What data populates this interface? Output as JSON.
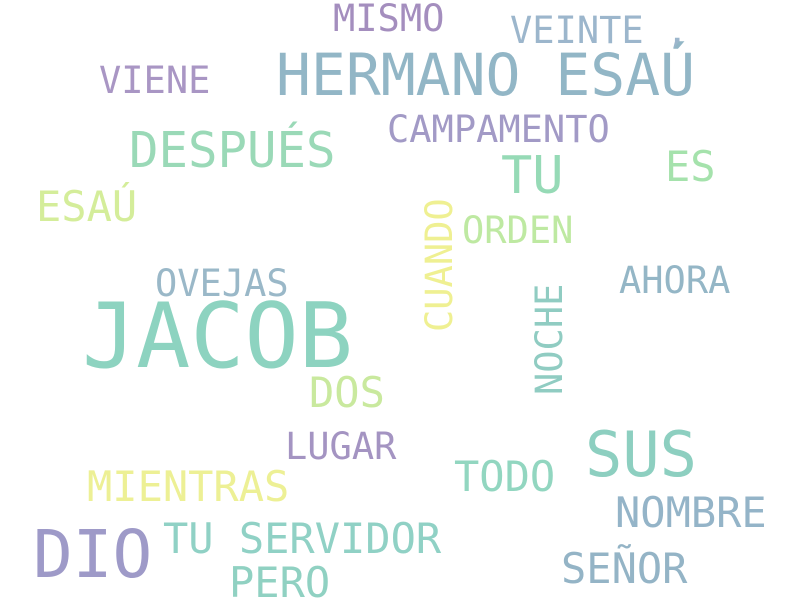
{
  "words": {
    "jacob": {
      "text": "JACOB",
      "color": "#8dd3c0"
    },
    "dio": {
      "text": "DIO",
      "color": "#9e9ac8"
    },
    "hermano_esau": {
      "text": "HERMANO ESAÚ",
      "color": "#92b6c6"
    },
    "sus": {
      "text": "SUS",
      "color": "#8dcfc0"
    },
    "despues": {
      "text": "DESPUÉS",
      "color": "#9ad9b7"
    },
    "tu": {
      "text": "TU",
      "color": "#96dab6"
    },
    "tu_servidor": {
      "text": "TU SERVIDOR",
      "color": "#90d1c5"
    },
    "mientras": {
      "text": "MIENTRAS",
      "color": "#edf095"
    },
    "nombre": {
      "text": "NOMBRE",
      "color": "#94b4c8"
    },
    "senor": {
      "text": "SEÑOR",
      "color": "#94b4c6"
    },
    "pero": {
      "text": "PERO",
      "color": "#90d1c2"
    },
    "esau": {
      "text": "ESAÚ",
      "color": "#d4ed9a"
    },
    "dos": {
      "text": "DOS",
      "color": "#c9e99e"
    },
    "es": {
      "text": "ES",
      "color": "#a5e2ac"
    },
    "todo": {
      "text": "TODO",
      "color": "#92d6c0"
    },
    "campamento": {
      "text": "CAMPAMENTO",
      "color": "#a29ac6"
    },
    "lugar": {
      "text": "LUGAR",
      "color": "#a494c2"
    },
    "veinte": {
      "text": "VEINTE ,",
      "color": "#9cb6cc"
    },
    "viene": {
      "text": "VIENE",
      "color": "#a996c4"
    },
    "mismo": {
      "text": "MISMO",
      "color": "#a48ebe"
    },
    "ovejas": {
      "text": "OVEJAS",
      "color": "#9ab8c8"
    },
    "orden": {
      "text": "ORDEN",
      "color": "#bee9a2"
    },
    "ahora": {
      "text": "AHORA",
      "color": "#94b6c6"
    },
    "cuando": {
      "text": "CUANDO",
      "color": "#eff092"
    },
    "noche": {
      "text": "NOCHE",
      "color": "#90ccc2"
    }
  }
}
